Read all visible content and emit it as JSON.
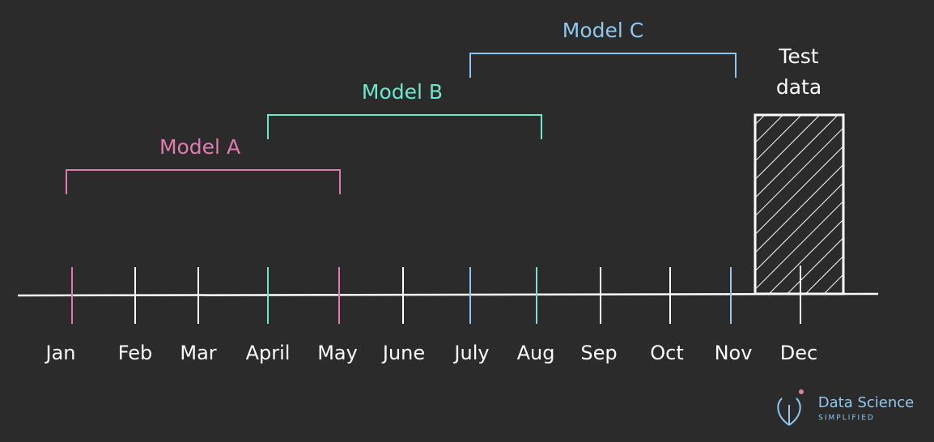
{
  "timeline": {
    "months": [
      "Jan",
      "Feb",
      "Mar",
      "April",
      "May",
      "June",
      "July",
      "Aug",
      "Sep",
      "Oct",
      "Nov",
      "Dec"
    ]
  },
  "models": [
    {
      "label": "Model A",
      "color": "#e07bb0"
    },
    {
      "label": "Model B",
      "color": "#6ee8c8"
    },
    {
      "label": "Model C",
      "color": "#8ec8f0"
    }
  ],
  "test_data": {
    "lines": [
      "Test",
      "data"
    ]
  },
  "logo": {
    "title": "Data Science",
    "subtitle": "SIMPLIFIED"
  }
}
